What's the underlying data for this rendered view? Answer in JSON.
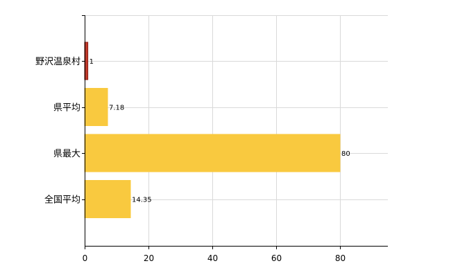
{
  "chart_data": {
    "type": "bar",
    "orientation": "horizontal",
    "categories": [
      "野沢温泉村",
      "県平均",
      "県最大",
      "全国平均"
    ],
    "values": [
      1,
      7.18,
      80,
      14.35
    ],
    "data_labels": [
      "1",
      "7.18",
      "80",
      "14.35"
    ],
    "title": "",
    "xlabel": "",
    "ylabel": "",
    "xlim": [
      0,
      95
    ],
    "x_ticks": [
      0,
      20,
      40,
      60,
      80
    ],
    "x_tick_labels": [
      "0",
      "20",
      "40",
      "60",
      "80"
    ],
    "grid": true,
    "bar_colors": [
      "#c0392b",
      "#f9c93f",
      "#f9c93f",
      "#f9c93f"
    ],
    "bar_outline_colors": [
      "#8e1b12",
      "#f9c93f",
      "#f9c93f",
      "#f9c93f"
    ],
    "grid_color": "#d9d9d9",
    "axis_color": "#000000"
  }
}
